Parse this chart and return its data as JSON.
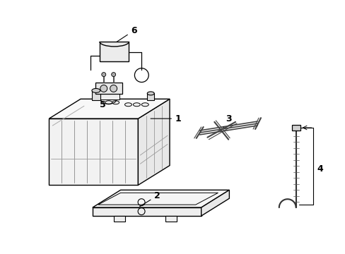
{
  "background_color": "#ffffff",
  "line_color": "#000000",
  "lw": 1.0,
  "fig_width": 4.89,
  "fig_height": 3.6,
  "dpi": 100,
  "label_fontsize": 9
}
